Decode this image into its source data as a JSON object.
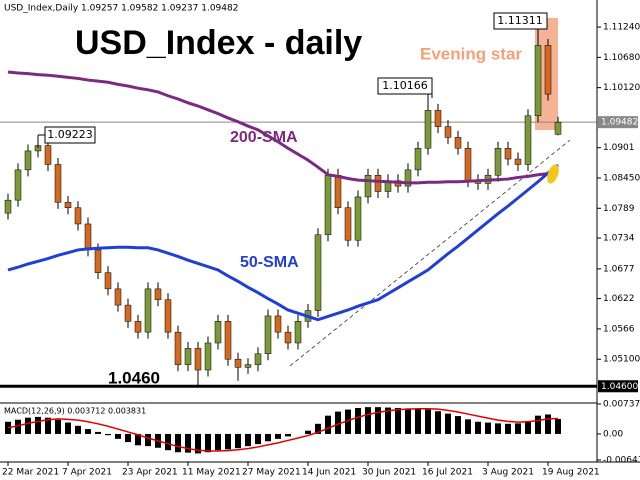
{
  "chart_data": [
    {
      "type": "candlestick",
      "header": "USD_Index,Daily  1.09257 1.09582 1.09237 1.09482",
      "title": "USD_Index - daily",
      "categories": [
        "22 Mar 2021",
        null,
        null,
        null,
        null,
        null,
        "7 Apr 2021",
        null,
        null,
        null,
        null,
        null,
        "23 Apr 2021",
        null,
        null,
        null,
        null,
        null,
        "11 May 2021",
        null,
        null,
        null,
        null,
        null,
        "27 May 2021",
        null,
        null,
        null,
        null,
        null,
        "14 Jun 2021",
        null,
        null,
        null,
        null,
        null,
        "30 Jun 2021",
        null,
        null,
        null,
        null,
        null,
        "16 Jul 2021",
        null,
        null,
        null,
        null,
        null,
        "3 Aug 2021",
        null,
        null,
        null,
        null,
        null,
        "19 Aug 2021",
        null
      ],
      "open": [
        1.078,
        1.0804,
        1.086,
        1.0895,
        1.0905,
        1.087,
        1.08,
        1.079,
        1.076,
        1.0712,
        1.067,
        1.064,
        1.061,
        1.058,
        1.056,
        1.064,
        1.062,
        1.056,
        1.05,
        1.053,
        1.049,
        1.054,
        1.058,
        1.051,
        1.0495,
        1.05,
        1.052,
        1.059,
        1.056,
        1.054,
        1.058,
        1.06,
        1.074,
        1.085,
        1.079,
        1.073,
        1.081,
        1.085,
        1.082,
        1.084,
        1.083,
        1.086,
        1.09,
        1.097,
        1.094,
        1.092,
        1.09,
        1.084,
        1.0835,
        1.085,
        1.09,
        1.088,
        1.087,
        1.096,
        1.109,
        1.09257
      ],
      "high": [
        1.0816,
        1.0872,
        1.0907,
        1.09223,
        1.0917,
        1.0882,
        1.0812,
        1.0802,
        1.0772,
        1.0724,
        1.0682,
        1.0652,
        1.0622,
        1.0592,
        1.0652,
        1.0652,
        1.0632,
        1.0572,
        1.0542,
        1.0542,
        1.0552,
        1.0592,
        1.0592,
        1.0522,
        1.0512,
        1.0532,
        1.0602,
        1.0602,
        1.0572,
        1.0592,
        1.0612,
        1.0752,
        1.0862,
        1.0862,
        1.0802,
        1.0822,
        1.0862,
        1.0862,
        1.0852,
        1.0852,
        1.0872,
        1.0912,
        1.10166,
        1.0982,
        1.0952,
        1.0932,
        1.0912,
        1.0852,
        1.0862,
        1.0912,
        1.0912,
        1.0892,
        1.0972,
        1.11311,
        1.1102,
        1.09582
      ],
      "low": [
        1.0768,
        1.0792,
        1.0848,
        1.0883,
        1.0858,
        1.0788,
        1.0778,
        1.0748,
        1.07,
        1.0658,
        1.0628,
        1.0598,
        1.0568,
        1.0548,
        1.0548,
        1.0608,
        1.0548,
        1.0488,
        1.0488,
        1.0462,
        1.0478,
        1.0528,
        1.0498,
        1.047,
        1.0483,
        1.0488,
        1.0508,
        1.0548,
        1.0528,
        1.0528,
        1.0568,
        1.0588,
        1.0728,
        1.0778,
        1.0718,
        1.0718,
        1.0798,
        1.0808,
        1.0808,
        1.0818,
        1.0818,
        1.0848,
        1.0888,
        1.0928,
        1.0908,
        1.0888,
        1.0828,
        1.0823,
        1.0823,
        1.0838,
        1.0868,
        1.0858,
        1.0858,
        1.0948,
        1.0988,
        1.09237
      ],
      "close": [
        1.0804,
        1.086,
        1.0895,
        1.0905,
        1.087,
        1.08,
        1.079,
        1.076,
        1.0712,
        1.067,
        1.064,
        1.061,
        1.058,
        1.056,
        1.064,
        1.062,
        1.056,
        1.05,
        1.053,
        1.049,
        1.054,
        1.058,
        1.051,
        1.0495,
        1.05,
        1.052,
        1.059,
        1.056,
        1.054,
        1.058,
        1.06,
        1.074,
        1.085,
        1.079,
        1.073,
        1.081,
        1.085,
        1.082,
        1.084,
        1.083,
        1.086,
        1.09,
        1.097,
        1.094,
        1.092,
        1.09,
        1.084,
        1.0835,
        1.085,
        1.09,
        1.088,
        1.087,
        1.096,
        1.109,
        1.1,
        1.09482
      ],
      "up_color": "#7a9a3a",
      "down_color": "#d2691e",
      "series": [
        {
          "name": "200-SMA",
          "color": "#7b2a82",
          "values": [
            1.1041,
            1.1039,
            1.1038,
            1.1036,
            1.1035,
            1.1033,
            1.1031,
            1.1029,
            1.1026,
            1.1024,
            1.1022,
            1.1018,
            1.1015,
            1.1011,
            1.1008,
            1.1004,
            1.0997,
            1.0991,
            1.0984,
            1.0978,
            1.0971,
            1.0964,
            1.0956,
            1.0949,
            1.0941,
            1.0934,
            1.0923,
            1.0912,
            1.09,
            1.0889,
            1.0878,
            1.0865,
            1.0851,
            1.0848,
            1.0844,
            1.0841,
            1.084,
            1.0839,
            1.0838,
            1.0837,
            1.0836,
            1.0836,
            1.0837,
            1.0837,
            1.0838,
            1.0838,
            1.0839,
            1.084,
            1.0841,
            1.0842,
            1.0843,
            1.0846,
            1.0848,
            1.0851,
            1.0853,
            1.0856
          ]
        },
        {
          "name": "50-SMA",
          "color": "#1f3fd6",
          "values": [
            1.0675,
            1.068,
            1.0686,
            1.0691,
            1.0696,
            1.0702,
            1.0707,
            1.0712,
            1.0714,
            1.0715,
            1.0716,
            1.0717,
            1.0717,
            1.0716,
            1.0716,
            1.0712,
            1.0706,
            1.07,
            1.0693,
            1.0687,
            1.0681,
            1.0675,
            1.0664,
            1.0654,
            1.0643,
            1.0633,
            1.0622,
            1.0612,
            1.0601,
            1.0595,
            1.0589,
            1.0583,
            1.0589,
            1.0595,
            1.0601,
            1.0608,
            1.0614,
            1.062,
            1.0631,
            1.0642,
            1.0653,
            1.0664,
            1.0675,
            1.069,
            1.0705,
            1.0719,
            1.0734,
            1.0749,
            1.0764,
            1.0779,
            1.0793,
            1.0808,
            1.0823,
            1.0838,
            1.0854,
            1.0869
          ]
        }
      ],
      "ylim": [
        1.04346,
        1.1174
      ],
      "yticks": [
        {
          "value": 1.1124,
          "label": "1.11240"
        },
        {
          "value": 1.1068,
          "label": "1.10680"
        },
        {
          "value": 1.1012,
          "label": "1.10120"
        },
        1.0901,
        {
          "value": 1.0845,
          "label": "1.08450"
        },
        1.0789,
        1.0734,
        1.0677,
        1.0622,
        1.0566,
        {
          "value": 1.051,
          "label": "1.05100"
        }
      ],
      "hlines": [
        {
          "value": 1.09482,
          "label": "1.09482",
          "color": "#888888"
        },
        {
          "value": 1.046,
          "label": "1.04600",
          "color": "#000000"
        }
      ],
      "annotations": [
        "1.09223",
        "1.10166",
        "1.11311",
        "Evening star",
        "1.0460"
      ]
    },
    {
      "type": "macd",
      "label": "MACD(12,26,9) 0.003712 0.003831",
      "values": [
        0.003,
        0.0035,
        0.004,
        0.0042,
        0.004,
        0.0035,
        0.0028,
        0.002,
        0.0012,
        0.0005,
        -0.0003,
        -0.0012,
        -0.002,
        -0.0028,
        -0.003,
        -0.0034,
        -0.004,
        -0.0045,
        -0.0046,
        -0.0048,
        -0.0045,
        -0.004,
        -0.0038,
        -0.0035,
        -0.003,
        -0.0025,
        -0.0018,
        -0.0012,
        -0.0006,
        0.0,
        0.0008,
        0.0025,
        0.0045,
        0.0055,
        0.006,
        0.0064,
        0.0066,
        0.0066,
        0.0065,
        0.0064,
        0.0063,
        0.0062,
        0.006,
        0.0056,
        0.005,
        0.0044,
        0.0036,
        0.003,
        0.0028,
        0.0026,
        0.0025,
        0.0026,
        0.0032,
        0.0045,
        0.0048,
        0.0037
      ],
      "color": "#000000",
      "signal": {
        "color": "#e00000",
        "values": [
          0.0015,
          0.002,
          0.0026,
          0.0031,
          0.0035,
          0.0037,
          0.0036,
          0.0034,
          0.003,
          0.0025,
          0.0019,
          0.0012,
          0.0005,
          -0.0002,
          -0.001,
          -0.0017,
          -0.0024,
          -0.0031,
          -0.0036,
          -0.004,
          -0.0042,
          -0.0042,
          -0.0041,
          -0.0039,
          -0.0036,
          -0.0032,
          -0.0027,
          -0.0022,
          -0.0016,
          -0.001,
          -0.0004,
          0.0004,
          0.0014,
          0.0024,
          0.0033,
          0.0041,
          0.0048,
          0.0053,
          0.0057,
          0.006,
          0.0061,
          0.0062,
          0.0062,
          0.0061,
          0.0058,
          0.0054,
          0.0049,
          0.0044,
          0.0039,
          0.0034,
          0.0031,
          0.0029,
          0.003,
          0.0033,
          0.0037,
          0.0038
        ]
      },
      "ylim": [
        -0.006415,
        0.007376
      ],
      "yticks": [
        0.007376,
        {
          "value": 0,
          "label": "0.00"
        },
        -0.006415
      ]
    }
  ]
}
